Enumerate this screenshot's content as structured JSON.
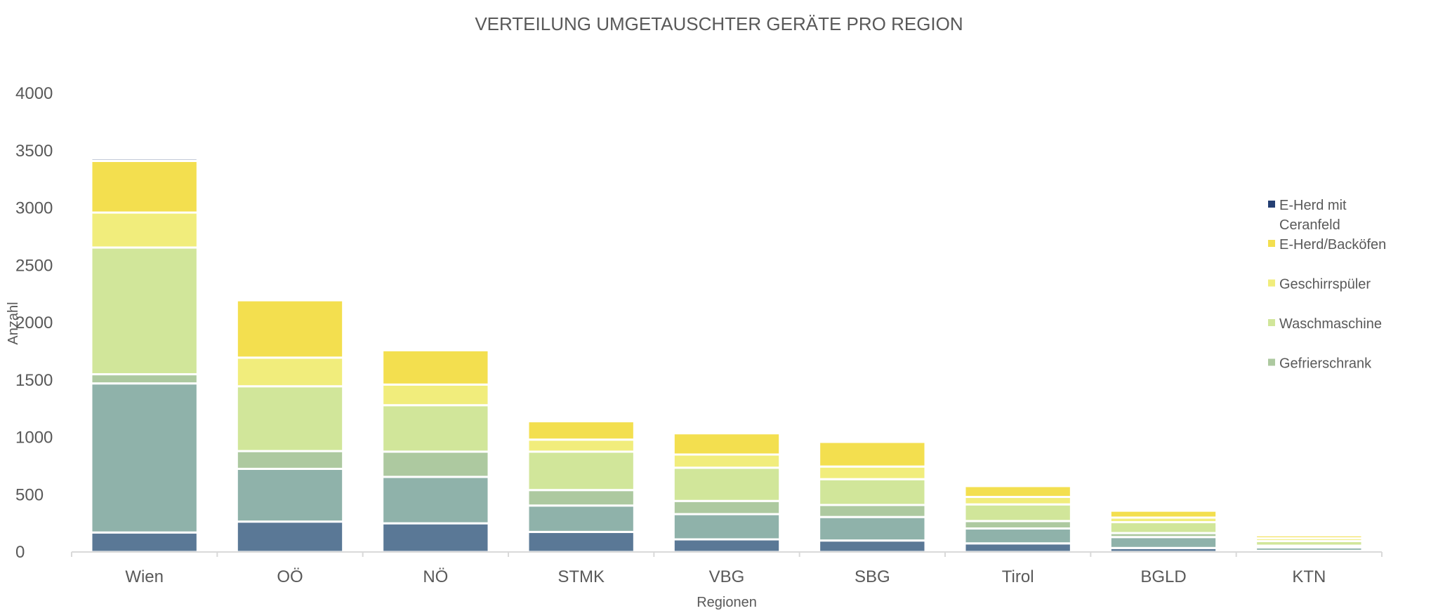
{
  "chart_data": {
    "type": "bar",
    "stacked": true,
    "title": "VERTEILUNG UMGETAUSCHTER GERÄTE PRO REGION",
    "xlabel": "Regionen",
    "ylabel": "Anzahl",
    "ylim": [
      0,
      4000
    ],
    "yticks": [
      0,
      500,
      1000,
      1500,
      2000,
      2500,
      3000,
      3500,
      4000
    ],
    "grid": false,
    "legend_position": "right",
    "categories": [
      "Wien",
      "OÖ",
      "NÖ",
      "STMK",
      "VBG",
      "SBG",
      "Tirol",
      "BGLD",
      "KTN"
    ],
    "series": [
      {
        "key": "s1",
        "values": [
          170,
          265,
          250,
          175,
          110,
          100,
          75,
          35,
          10
        ],
        "color": "#5a7896"
      },
      {
        "key": "s2",
        "values": [
          1300,
          460,
          405,
          230,
          220,
          205,
          130,
          95,
          30
        ],
        "color": "#8fb2aa"
      },
      {
        "key": "s3",
        "values": [
          80,
          155,
          220,
          135,
          115,
          105,
          65,
          35,
          15
        ],
        "color": "#adc9a0"
      },
      {
        "name": "Waschmaschine",
        "values": [
          1105,
          565,
          405,
          335,
          290,
          225,
          145,
          95,
          40
        ],
        "color": "#d1e69a"
      },
      {
        "name": "Geschirrspüler",
        "values": [
          305,
          250,
          180,
          105,
          115,
          110,
          65,
          40,
          25
        ],
        "color": "#f1ed7c"
      },
      {
        "name": "E-Herd/Backöfen",
        "values": [
          450,
          500,
          300,
          160,
          185,
          215,
          95,
          60,
          25
        ],
        "color": "#f3df4f"
      },
      {
        "name": "E-Herd mit Ceranfeld",
        "values": [
          20,
          0,
          10,
          0,
          0,
          0,
          0,
          0,
          0
        ],
        "color": "#243f73"
      }
    ],
    "legend_entries": [
      {
        "lines": [
          "E-Herd mit",
          "Ceranfeld"
        ],
        "color": "#243f73"
      },
      {
        "lines": [
          "E-Herd/Backöfen"
        ],
        "color": "#f3df4f"
      },
      {
        "lines": [
          "Geschirrspüler"
        ],
        "color": "#f1ed7c"
      },
      {
        "lines": [
          "Waschmaschine"
        ],
        "color": "#d1e69a"
      },
      {
        "lines": [
          "Gefrierschrank"
        ],
        "color": "#adc9a0"
      }
    ]
  }
}
